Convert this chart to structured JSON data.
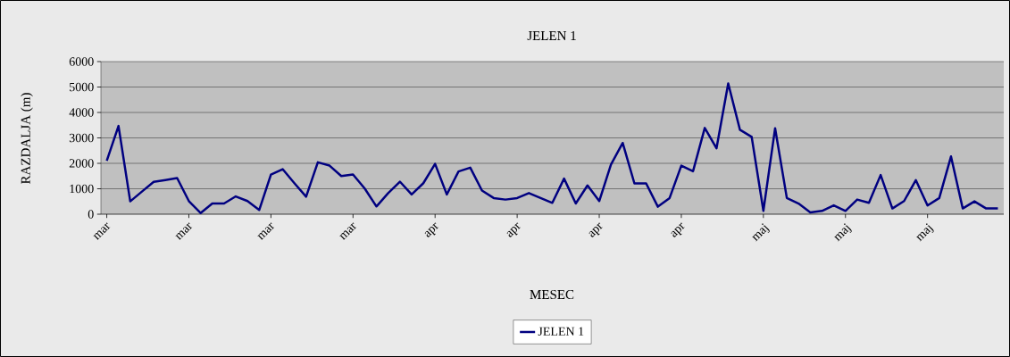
{
  "chart_data": {
    "type": "line",
    "title": "JELEN 1",
    "xlabel": "MESEC",
    "ylabel": "RAZDALJA (m)",
    "categories": [
      "mar",
      null,
      null,
      null,
      null,
      null,
      null,
      "mar",
      null,
      null,
      null,
      null,
      null,
      null,
      "mar",
      null,
      null,
      null,
      null,
      null,
      null,
      "mar",
      null,
      null,
      null,
      null,
      null,
      null,
      "apr",
      null,
      null,
      null,
      null,
      null,
      null,
      "apr",
      null,
      null,
      null,
      null,
      null,
      null,
      "apr",
      null,
      null,
      null,
      null,
      null,
      null,
      "apr",
      null,
      null,
      null,
      null,
      null,
      null,
      "maj",
      null,
      null,
      null,
      null,
      null,
      null,
      "maj",
      null,
      null,
      null,
      null,
      null,
      null,
      "maj",
      null,
      null,
      null,
      null,
      null,
      null
    ],
    "series": [
      {
        "name": "JELEN 1",
        "color": "#000080",
        "values": [
          2100,
          3470,
          505,
          890,
          1270,
          1340,
          1420,
          517,
          47,
          420,
          420,
          700,
          517,
          165,
          1560,
          1770,
          1220,
          690,
          2040,
          1910,
          1500,
          1560,
          1010,
          305,
          830,
          1280,
          775,
          1220,
          1980,
          775,
          1680,
          1830,
          930,
          635,
          575,
          635,
          830,
          635,
          445,
          1400,
          420,
          1130,
          517,
          1950,
          2800,
          1210,
          1210,
          295,
          635,
          1910,
          1690,
          3390,
          2590,
          5140,
          3320,
          3040,
          130,
          3380,
          635,
          420,
          70,
          130,
          350,
          130,
          575,
          445,
          1540,
          225,
          517,
          1340,
          340,
          635,
          2270,
          225,
          505,
          225,
          225
        ]
      }
    ],
    "ylim": [
      0,
      6000
    ],
    "yticks": [
      0,
      1000,
      2000,
      3000,
      4000,
      5000,
      6000
    ],
    "grid": "y",
    "legend": "bottom",
    "line_style": "solid"
  }
}
